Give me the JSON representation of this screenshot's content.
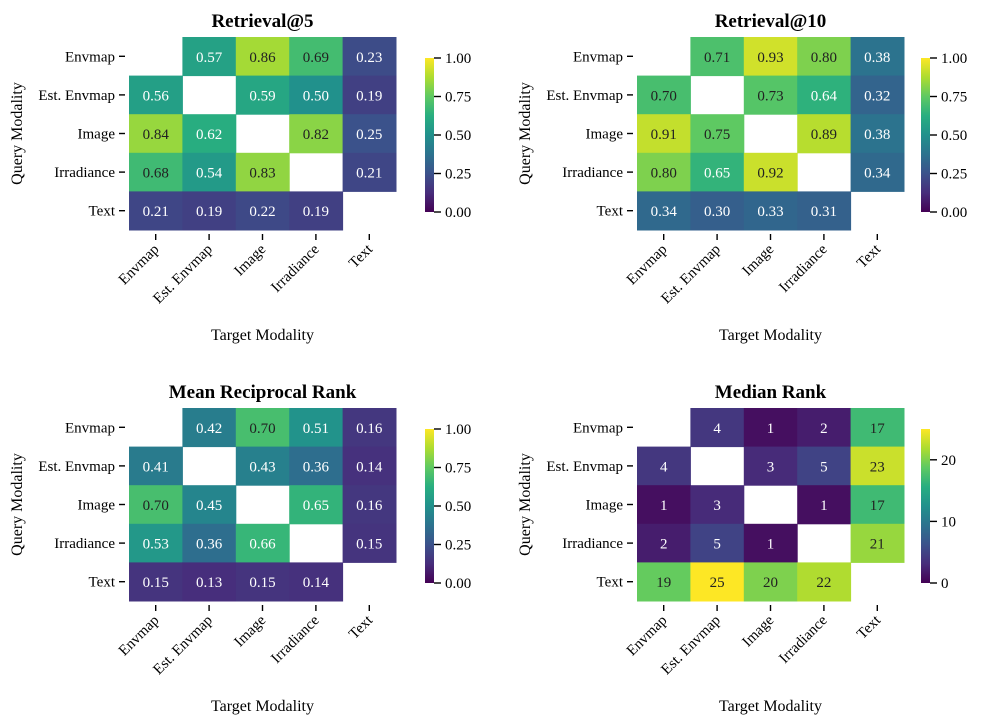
{
  "chart_data": [
    {
      "type": "heatmap",
      "title": "Retrieval@5",
      "xlabel": "Target Modality",
      "ylabel": "Query Modality",
      "rows": [
        "Envmap",
        "Est. Envmap",
        "Image",
        "Irradiance",
        "Text"
      ],
      "cols": [
        "Envmap",
        "Est. Envmap",
        "Image",
        "Irradiance",
        "Text"
      ],
      "values": [
        [
          null,
          0.57,
          0.86,
          0.69,
          0.23
        ],
        [
          0.56,
          null,
          0.59,
          0.5,
          0.19
        ],
        [
          0.84,
          0.62,
          null,
          0.82,
          0.25
        ],
        [
          0.68,
          0.54,
          0.83,
          null,
          0.21
        ],
        [
          0.21,
          0.19,
          0.22,
          0.19,
          null
        ]
      ],
      "labels": [
        [
          "",
          "0.57",
          "0.86",
          "0.69",
          "0.23"
        ],
        [
          "0.56",
          "",
          "0.59",
          "0.50",
          "0.19"
        ],
        [
          "0.84",
          "0.62",
          "",
          "0.82",
          "0.25"
        ],
        [
          "0.68",
          "0.54",
          "0.83",
          "",
          "0.21"
        ],
        [
          "0.21",
          "0.19",
          "0.22",
          "0.19",
          ""
        ]
      ],
      "colorbar": {
        "range": [
          0,
          1
        ],
        "ticks": [
          0,
          0.25,
          0.5,
          0.75,
          1.0
        ],
        "tick_labels": [
          "0.00",
          "0.25",
          "0.50",
          "0.75",
          "1.00"
        ]
      },
      "colormap": "viridis"
    },
    {
      "type": "heatmap",
      "title": "Retrieval@10",
      "xlabel": "Target Modality",
      "ylabel": "Query Modality",
      "rows": [
        "Envmap",
        "Est. Envmap",
        "Image",
        "Irradiance",
        "Text"
      ],
      "cols": [
        "Envmap",
        "Est. Envmap",
        "Image",
        "Irradiance",
        "Text"
      ],
      "values": [
        [
          null,
          0.71,
          0.93,
          0.8,
          0.38
        ],
        [
          0.7,
          null,
          0.73,
          0.64,
          0.32
        ],
        [
          0.91,
          0.75,
          null,
          0.89,
          0.38
        ],
        [
          0.8,
          0.65,
          0.92,
          null,
          0.34
        ],
        [
          0.34,
          0.3,
          0.33,
          0.31,
          null
        ]
      ],
      "labels": [
        [
          "",
          "0.71",
          "0.93",
          "0.80",
          "0.38"
        ],
        [
          "0.70",
          "",
          "0.73",
          "0.64",
          "0.32"
        ],
        [
          "0.91",
          "0.75",
          "",
          "0.89",
          "0.38"
        ],
        [
          "0.80",
          "0.65",
          "0.92",
          "",
          "0.34"
        ],
        [
          "0.34",
          "0.30",
          "0.33",
          "0.31",
          ""
        ]
      ],
      "colorbar": {
        "range": [
          0,
          1
        ],
        "ticks": [
          0,
          0.25,
          0.5,
          0.75,
          1.0
        ],
        "tick_labels": [
          "0.00",
          "0.25",
          "0.50",
          "0.75",
          "1.00"
        ]
      },
      "colormap": "viridis"
    },
    {
      "type": "heatmap",
      "title": "Mean Reciprocal Rank",
      "xlabel": "Target Modality",
      "ylabel": "Query Modality",
      "rows": [
        "Envmap",
        "Est. Envmap",
        "Image",
        "Irradiance",
        "Text"
      ],
      "cols": [
        "Envmap",
        "Est. Envmap",
        "Image",
        "Irradiance",
        "Text"
      ],
      "values": [
        [
          null,
          0.42,
          0.7,
          0.51,
          0.16
        ],
        [
          0.41,
          null,
          0.43,
          0.36,
          0.14
        ],
        [
          0.7,
          0.45,
          null,
          0.65,
          0.16
        ],
        [
          0.53,
          0.36,
          0.66,
          null,
          0.15
        ],
        [
          0.15,
          0.13,
          0.15,
          0.14,
          null
        ]
      ],
      "labels": [
        [
          "",
          "0.42",
          "0.70",
          "0.51",
          "0.16"
        ],
        [
          "0.41",
          "",
          "0.43",
          "0.36",
          "0.14"
        ],
        [
          "0.70",
          "0.45",
          "",
          "0.65",
          "0.16"
        ],
        [
          "0.53",
          "0.36",
          "0.66",
          "",
          "0.15"
        ],
        [
          "0.15",
          "0.13",
          "0.15",
          "0.14",
          ""
        ]
      ],
      "colorbar": {
        "range": [
          0,
          1
        ],
        "ticks": [
          0,
          0.25,
          0.5,
          0.75,
          1.0
        ],
        "tick_labels": [
          "0.00",
          "0.25",
          "0.50",
          "0.75",
          "1.00"
        ]
      },
      "colormap": "viridis"
    },
    {
      "type": "heatmap",
      "title": "Median Rank",
      "xlabel": "Target Modality",
      "ylabel": "Query Modality",
      "rows": [
        "Envmap",
        "Est. Envmap",
        "Image",
        "Irradiance",
        "Text"
      ],
      "cols": [
        "Envmap",
        "Est. Envmap",
        "Image",
        "Irradiance",
        "Text"
      ],
      "values": [
        [
          null,
          4,
          1,
          2,
          17
        ],
        [
          4,
          null,
          3,
          5,
          23
        ],
        [
          1,
          3,
          null,
          1,
          17
        ],
        [
          2,
          5,
          1,
          null,
          21
        ],
        [
          19,
          25,
          20,
          22,
          null
        ]
      ],
      "labels": [
        [
          "",
          "4",
          "1",
          "2",
          "17"
        ],
        [
          "4",
          "",
          "3",
          "5",
          "23"
        ],
        [
          "1",
          "3",
          "",
          "1",
          "17"
        ],
        [
          "2",
          "5",
          "1",
          "",
          "21"
        ],
        [
          "19",
          "25",
          "20",
          "22",
          ""
        ]
      ],
      "colorbar": {
        "range": [
          0,
          25
        ],
        "ticks": [
          0,
          10,
          20
        ],
        "tick_labels": [
          "0",
          "10",
          "20"
        ]
      },
      "colormap": "viridis"
    }
  ]
}
